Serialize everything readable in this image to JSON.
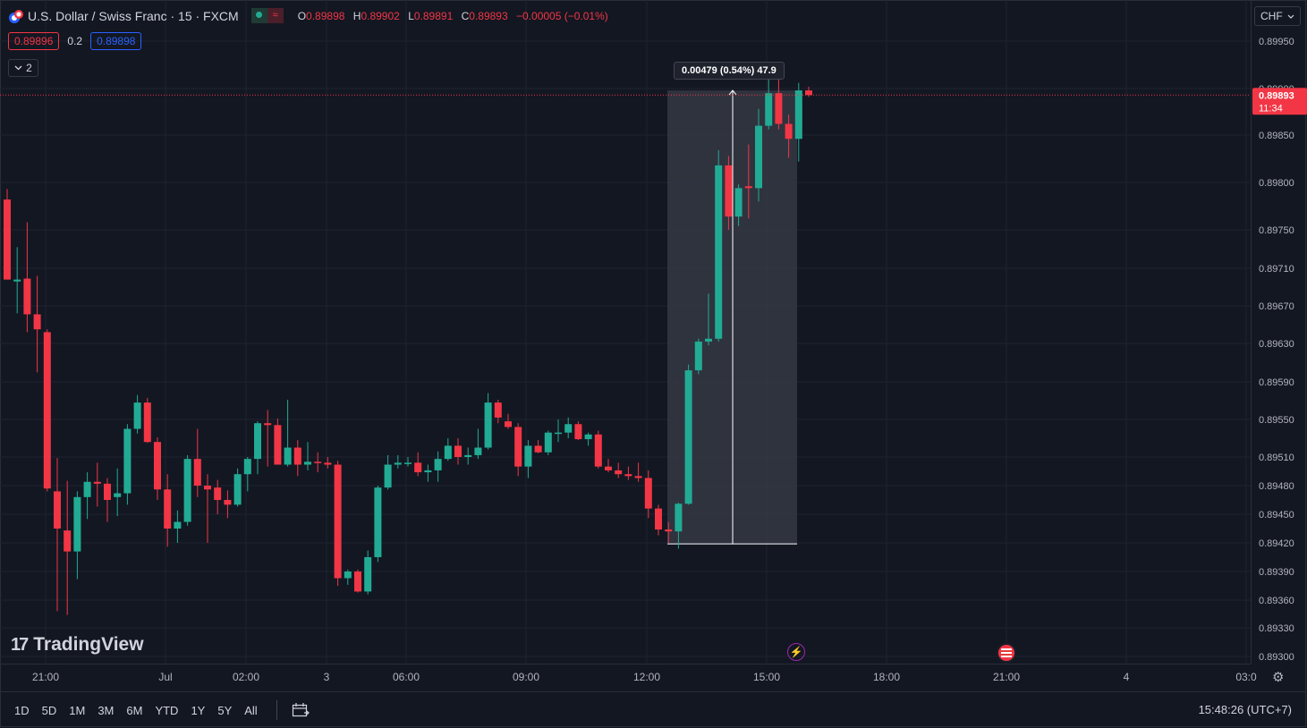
{
  "symbol": {
    "title": "U.S. Dollar / Swiss Franc · 15 · FXCM",
    "ohlc": [
      {
        "k": "O",
        "v": "0.89898"
      },
      {
        "k": "H",
        "v": "0.89902"
      },
      {
        "k": "L",
        "v": "0.89891"
      },
      {
        "k": "C",
        "v": "0.89893"
      }
    ],
    "change": "−0.00005 (−0.01%)"
  },
  "quotes": {
    "sell": "0.89896",
    "spread": "0.2",
    "buy": "0.89898"
  },
  "indicators": {
    "collapsed_count": "2"
  },
  "currency_button": "CHF",
  "price_axis": {
    "labels": [
      "0.89950",
      "0.89900",
      "0.89850",
      "0.89800",
      "0.89750",
      "0.89710",
      "0.89670",
      "0.89630",
      "0.89590",
      "0.89550",
      "0.89510",
      "0.89480",
      "0.89450",
      "0.89420",
      "0.89390",
      "0.89360",
      "0.89330",
      "0.89300"
    ],
    "current_price": "0.89893",
    "countdown": "11:34"
  },
  "time_axis": {
    "labels": [
      "21:00",
      "Jul",
      "02:00",
      "3",
      "06:00",
      "09:00",
      "12:00",
      "15:00",
      "18:00",
      "21:00",
      "4",
      "03:0"
    ]
  },
  "measure_label": "0.00479 (0.54%) 47.9",
  "ranges": [
    "1D",
    "5D",
    "1M",
    "3M",
    "6M",
    "YTD",
    "1Y",
    "5Y",
    "All"
  ],
  "clock": "15:48:26 (UTC+7)",
  "brand": "TradingView",
  "colors": {
    "up": "#22ab94",
    "down": "#f23645",
    "background": "#131722",
    "grid": "#1f2330",
    "measure_box": "#3a3e48"
  },
  "icons": [
    "currency-flag-icon",
    "data-status-icon",
    "chevron-down-icon",
    "calendar-icon",
    "lightning-icon",
    "us-flag-icon",
    "gear-icon"
  ],
  "chart_data": {
    "type": "candlestick",
    "price_range": [
      0.8929,
      0.8998
    ],
    "candles": [
      {
        "o": 0.89782,
        "h": 0.89793,
        "l": 0.89698,
        "c": 0.89698
      },
      {
        "o": 0.89696,
        "h": 0.89732,
        "l": 0.89662,
        "c": 0.89698
      },
      {
        "o": 0.89699,
        "h": 0.89758,
        "l": 0.89642,
        "c": 0.89661
      },
      {
        "o": 0.89661,
        "h": 0.89702,
        "l": 0.896,
        "c": 0.89645
      },
      {
        "o": 0.89642,
        "h": 0.89645,
        "l": 0.89474,
        "c": 0.89477
      },
      {
        "o": 0.89474,
        "h": 0.89509,
        "l": 0.89348,
        "c": 0.89435
      },
      {
        "o": 0.89433,
        "h": 0.89485,
        "l": 0.89344,
        "c": 0.89411
      },
      {
        "o": 0.89411,
        "h": 0.89474,
        "l": 0.89382,
        "c": 0.89468
      },
      {
        "o": 0.89468,
        "h": 0.89494,
        "l": 0.89445,
        "c": 0.89484
      },
      {
        "o": 0.89484,
        "h": 0.89504,
        "l": 0.89458,
        "c": 0.89482
      },
      {
        "o": 0.89482,
        "h": 0.89488,
        "l": 0.89442,
        "c": 0.89465
      },
      {
        "o": 0.89468,
        "h": 0.89498,
        "l": 0.89448,
        "c": 0.89472
      },
      {
        "o": 0.89472,
        "h": 0.89545,
        "l": 0.8946,
        "c": 0.8954
      },
      {
        "o": 0.8954,
        "h": 0.89576,
        "l": 0.89535,
        "c": 0.89568
      },
      {
        "o": 0.89568,
        "h": 0.89573,
        "l": 0.89525,
        "c": 0.89526
      },
      {
        "o": 0.89526,
        "h": 0.89531,
        "l": 0.89465,
        "c": 0.89476
      },
      {
        "o": 0.89476,
        "h": 0.89492,
        "l": 0.89416,
        "c": 0.89435
      },
      {
        "o": 0.89435,
        "h": 0.89454,
        "l": 0.8942,
        "c": 0.89442
      },
      {
        "o": 0.89442,
        "h": 0.89512,
        "l": 0.89438,
        "c": 0.89508
      },
      {
        "o": 0.89508,
        "h": 0.8954,
        "l": 0.89468,
        "c": 0.8948
      },
      {
        "o": 0.8948,
        "h": 0.89492,
        "l": 0.8942,
        "c": 0.89476
      },
      {
        "o": 0.89478,
        "h": 0.89486,
        "l": 0.8945,
        "c": 0.89465
      },
      {
        "o": 0.89465,
        "h": 0.89475,
        "l": 0.89446,
        "c": 0.8946
      },
      {
        "o": 0.8946,
        "h": 0.89498,
        "l": 0.89458,
        "c": 0.89492
      },
      {
        "o": 0.89492,
        "h": 0.8951,
        "l": 0.89474,
        "c": 0.89508
      },
      {
        "o": 0.89508,
        "h": 0.89548,
        "l": 0.89492,
        "c": 0.89546
      },
      {
        "o": 0.89546,
        "h": 0.8956,
        "l": 0.895,
        "c": 0.89544
      },
      {
        "o": 0.89544,
        "h": 0.89551,
        "l": 0.89502,
        "c": 0.89502
      },
      {
        "o": 0.89502,
        "h": 0.89571,
        "l": 0.895,
        "c": 0.8952
      },
      {
        "o": 0.8952,
        "h": 0.89528,
        "l": 0.8949,
        "c": 0.89502
      },
      {
        "o": 0.89502,
        "h": 0.89526,
        "l": 0.89496,
        "c": 0.89505
      },
      {
        "o": 0.89505,
        "h": 0.89515,
        "l": 0.89494,
        "c": 0.89504
      },
      {
        "o": 0.89504,
        "h": 0.8951,
        "l": 0.89498,
        "c": 0.89502
      },
      {
        "o": 0.89502,
        "h": 0.89506,
        "l": 0.89375,
        "c": 0.89383
      },
      {
        "o": 0.89383,
        "h": 0.89392,
        "l": 0.89376,
        "c": 0.8939
      },
      {
        "o": 0.8939,
        "h": 0.89392,
        "l": 0.89368,
        "c": 0.89369
      },
      {
        "o": 0.89369,
        "h": 0.89412,
        "l": 0.89366,
        "c": 0.89405
      },
      {
        "o": 0.89405,
        "h": 0.8948,
        "l": 0.894,
        "c": 0.89478
      },
      {
        "o": 0.89478,
        "h": 0.89512,
        "l": 0.89476,
        "c": 0.89502
      },
      {
        "o": 0.89502,
        "h": 0.89512,
        "l": 0.89498,
        "c": 0.89504
      },
      {
        "o": 0.89503,
        "h": 0.8951,
        "l": 0.895,
        "c": 0.89504
      },
      {
        "o": 0.89504,
        "h": 0.89515,
        "l": 0.8949,
        "c": 0.89494
      },
      {
        "o": 0.89494,
        "h": 0.89502,
        "l": 0.89484,
        "c": 0.89496
      },
      {
        "o": 0.89496,
        "h": 0.89516,
        "l": 0.89484,
        "c": 0.89508
      },
      {
        "o": 0.89508,
        "h": 0.8953,
        "l": 0.89506,
        "c": 0.89522
      },
      {
        "o": 0.89522,
        "h": 0.8953,
        "l": 0.89502,
        "c": 0.8951
      },
      {
        "o": 0.8951,
        "h": 0.8952,
        "l": 0.89502,
        "c": 0.89512
      },
      {
        "o": 0.89512,
        "h": 0.8954,
        "l": 0.89508,
        "c": 0.8952
      },
      {
        "o": 0.8952,
        "h": 0.89578,
        "l": 0.89518,
        "c": 0.89568
      },
      {
        "o": 0.89568,
        "h": 0.89571,
        "l": 0.89546,
        "c": 0.89552
      },
      {
        "o": 0.89548,
        "h": 0.89556,
        "l": 0.8954,
        "c": 0.89542
      },
      {
        "o": 0.89542,
        "h": 0.89546,
        "l": 0.8949,
        "c": 0.895
      },
      {
        "o": 0.895,
        "h": 0.89528,
        "l": 0.89488,
        "c": 0.89522
      },
      {
        "o": 0.89522,
        "h": 0.89528,
        "l": 0.89514,
        "c": 0.89515
      },
      {
        "o": 0.89515,
        "h": 0.89538,
        "l": 0.89512,
        "c": 0.89536
      },
      {
        "o": 0.89536,
        "h": 0.8955,
        "l": 0.89526,
        "c": 0.89536
      },
      {
        "o": 0.89536,
        "h": 0.89552,
        "l": 0.8953,
        "c": 0.89545
      },
      {
        "o": 0.89545,
        "h": 0.89548,
        "l": 0.89528,
        "c": 0.89529
      },
      {
        "o": 0.89529,
        "h": 0.89536,
        "l": 0.89522,
        "c": 0.89534
      },
      {
        "o": 0.89534,
        "h": 0.89538,
        "l": 0.89498,
        "c": 0.895
      },
      {
        "o": 0.895,
        "h": 0.89508,
        "l": 0.89494,
        "c": 0.89496
      },
      {
        "o": 0.89496,
        "h": 0.89504,
        "l": 0.89488,
        "c": 0.89492
      },
      {
        "o": 0.89492,
        "h": 0.895,
        "l": 0.89486,
        "c": 0.8949
      },
      {
        "o": 0.8949,
        "h": 0.89504,
        "l": 0.89484,
        "c": 0.89488
      },
      {
        "o": 0.89488,
        "h": 0.89496,
        "l": 0.89446,
        "c": 0.89456
      },
      {
        "o": 0.89456,
        "h": 0.8946,
        "l": 0.89428,
        "c": 0.89434
      },
      {
        "o": 0.89434,
        "h": 0.89442,
        "l": 0.8942,
        "c": 0.89432
      },
      {
        "o": 0.89432,
        "h": 0.89462,
        "l": 0.89414,
        "c": 0.89461
      },
      {
        "o": 0.89461,
        "h": 0.89608,
        "l": 0.8946,
        "c": 0.89602
      },
      {
        "o": 0.89602,
        "h": 0.89635,
        "l": 0.89598,
        "c": 0.89632
      },
      {
        "o": 0.89632,
        "h": 0.89683,
        "l": 0.89628,
        "c": 0.89635
      },
      {
        "o": 0.89635,
        "h": 0.89834,
        "l": 0.89632,
        "c": 0.89818
      },
      {
        "o": 0.89818,
        "h": 0.89828,
        "l": 0.8975,
        "c": 0.89764
      },
      {
        "o": 0.89764,
        "h": 0.89798,
        "l": 0.89754,
        "c": 0.89794
      },
      {
        "o": 0.89796,
        "h": 0.8984,
        "l": 0.89762,
        "c": 0.89794
      },
      {
        "o": 0.89794,
        "h": 0.89878,
        "l": 0.8978,
        "c": 0.8986
      },
      {
        "o": 0.8986,
        "h": 0.89912,
        "l": 0.89856,
        "c": 0.89895
      },
      {
        "o": 0.89895,
        "h": 0.8991,
        "l": 0.89856,
        "c": 0.89862
      },
      {
        "o": 0.89862,
        "h": 0.89872,
        "l": 0.89826,
        "c": 0.89846
      },
      {
        "o": 0.89846,
        "h": 0.89906,
        "l": 0.89822,
        "c": 0.89898
      },
      {
        "o": 0.89898,
        "h": 0.89902,
        "l": 0.89891,
        "c": 0.89893
      }
    ]
  }
}
